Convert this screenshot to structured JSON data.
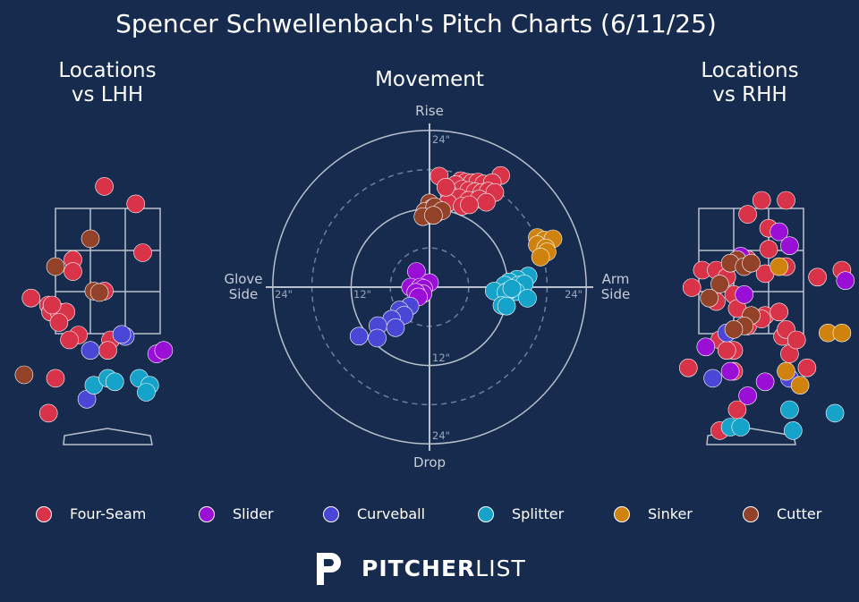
{
  "title": "Spencer Schwellenbach's Pitch Charts (6/11/25)",
  "colors": {
    "background": "#162b4d",
    "Four-Seam": "#d9334a",
    "Slider": "#9a0fd6",
    "Curveball": "#4a46d6",
    "Splitter": "#16a3c9",
    "Sinker": "#cf830e",
    "Cutter": "#93422a"
  },
  "logo": {
    "bold": "PITCHER",
    "light": "LIST"
  },
  "chart_data": [
    {
      "type": "scatter",
      "title": "Locations\nvs LHH",
      "title_line1": "Locations",
      "title_line2": "vs LHH",
      "points": [
        {
          "pitch": "Four-Seam",
          "x": -0.05,
          "y": 4.2
        },
        {
          "pitch": "Four-Seam",
          "x": 0.4,
          "y": 3.95
        },
        {
          "pitch": "Four-Seam",
          "x": 0.5,
          "y": 3.25
        },
        {
          "pitch": "Four-Seam",
          "x": -1.1,
          "y": 2.6
        },
        {
          "pitch": "Four-Seam",
          "x": -0.5,
          "y": 3.15
        },
        {
          "pitch": "Four-Seam",
          "x": -0.5,
          "y": 2.98
        },
        {
          "pitch": "Four-Seam",
          "x": -0.05,
          "y": 2.7
        },
        {
          "pitch": "Four-Seam",
          "x": -0.85,
          "y": 2.5
        },
        {
          "pitch": "Four-Seam",
          "x": -0.82,
          "y": 2.4
        },
        {
          "pitch": "Four-Seam",
          "x": -0.7,
          "y": 2.4
        },
        {
          "pitch": "Four-Seam",
          "x": -0.6,
          "y": 2.4
        },
        {
          "pitch": "Four-Seam",
          "x": -0.7,
          "y": 2.25
        },
        {
          "pitch": "Four-Seam",
          "x": -0.42,
          "y": 2.07
        },
        {
          "pitch": "Four-Seam",
          "x": -0.55,
          "y": 2.0
        },
        {
          "pitch": "Four-Seam",
          "x": 0.04,
          "y": 2.0
        },
        {
          "pitch": "Four-Seam",
          "x": 0.0,
          "y": 1.85
        },
        {
          "pitch": "Four-Seam",
          "x": -0.75,
          "y": 1.45
        },
        {
          "pitch": "Four-Seam",
          "x": -0.85,
          "y": 0.95
        },
        {
          "pitch": "Four-Seam",
          "x": -0.8,
          "y": 2.5
        },
        {
          "pitch": "Slider",
          "x": 0.7,
          "y": 1.8
        },
        {
          "pitch": "Slider",
          "x": 0.8,
          "y": 1.85
        },
        {
          "pitch": "Curveball",
          "x": 0.25,
          "y": 2.05
        },
        {
          "pitch": "Curveball",
          "x": -0.25,
          "y": 1.85
        },
        {
          "pitch": "Curveball",
          "x": -0.3,
          "y": 1.15
        },
        {
          "pitch": "Curveball",
          "x": -0.35,
          "y": 0.0
        },
        {
          "pitch": "Curveball",
          "x": 0.2,
          "y": 2.08
        },
        {
          "pitch": "Splitter",
          "x": -0.2,
          "y": 1.35
        },
        {
          "pitch": "Splitter",
          "x": 0.0,
          "y": 1.45
        },
        {
          "pitch": "Splitter",
          "x": 0.1,
          "y": 1.4
        },
        {
          "pitch": "Splitter",
          "x": 0.45,
          "y": 1.45
        },
        {
          "pitch": "Splitter",
          "x": 0.6,
          "y": 1.35
        },
        {
          "pitch": "Splitter",
          "x": 0.55,
          "y": 1.25
        },
        {
          "pitch": "Splitter",
          "x": 0.0,
          "y": 0.0
        },
        {
          "pitch": "Splitter",
          "x": -0.25,
          "y": -0.5
        },
        {
          "pitch": "Cutter",
          "x": -0.25,
          "y": 3.45
        },
        {
          "pitch": "Cutter",
          "x": -0.75,
          "y": 3.05
        },
        {
          "pitch": "Cutter",
          "x": -0.2,
          "y": 2.7
        },
        {
          "pitch": "Cutter",
          "x": -0.12,
          "y": 2.68
        },
        {
          "pitch": "Cutter",
          "x": -1.2,
          "y": 1.5
        }
      ]
    },
    {
      "type": "scatter",
      "title": "Movement",
      "axis_labels": {
        "top": "Rise",
        "bottom": "Drop",
        "left_line1": "Glove",
        "left_line2": "Side",
        "right_line1": "Arm",
        "right_line2": "Side"
      },
      "ring_labels": {
        "upper": "24\"",
        "right": "24\"",
        "left": "24\"",
        "inner_left": "12\"",
        "inner_low": "12\"",
        "lower": "24\""
      },
      "rings": [
        6,
        12,
        18,
        24
      ],
      "points": [
        {
          "pitch": "Four-Seam",
          "x": 1.5,
          "y": 17
        },
        {
          "pitch": "Four-Seam",
          "x": 4.8,
          "y": 16.3
        },
        {
          "pitch": "Four-Seam",
          "x": 5.6,
          "y": 16.1
        },
        {
          "pitch": "Four-Seam",
          "x": 6.5,
          "y": 16.0
        },
        {
          "pitch": "Four-Seam",
          "x": 7.4,
          "y": 16.1
        },
        {
          "pitch": "Four-Seam",
          "x": 8.3,
          "y": 15.8
        },
        {
          "pitch": "Four-Seam",
          "x": 10.9,
          "y": 17.1
        },
        {
          "pitch": "Four-Seam",
          "x": 9.6,
          "y": 16.0
        },
        {
          "pitch": "Four-Seam",
          "x": 4.0,
          "y": 15.7
        },
        {
          "pitch": "Four-Seam",
          "x": 5.0,
          "y": 15.0
        },
        {
          "pitch": "Four-Seam",
          "x": 6.0,
          "y": 14.8
        },
        {
          "pitch": "Four-Seam",
          "x": 7.0,
          "y": 14.6
        },
        {
          "pitch": "Four-Seam",
          "x": 8.0,
          "y": 14.5
        },
        {
          "pitch": "Four-Seam",
          "x": 9.0,
          "y": 14.7
        },
        {
          "pitch": "Four-Seam",
          "x": 10.0,
          "y": 14.5
        },
        {
          "pitch": "Four-Seam",
          "x": 3.0,
          "y": 14.3
        },
        {
          "pitch": "Four-Seam",
          "x": 4.5,
          "y": 13.7
        },
        {
          "pitch": "Four-Seam",
          "x": 6.0,
          "y": 13.3
        },
        {
          "pitch": "Four-Seam",
          "x": 7.6,
          "y": 13.5
        },
        {
          "pitch": "Four-Seam",
          "x": 8.7,
          "y": 13.0
        },
        {
          "pitch": "Four-Seam",
          "x": 2.8,
          "y": 12.9
        },
        {
          "pitch": "Four-Seam",
          "x": 5.0,
          "y": 12.4
        },
        {
          "pitch": "Four-Seam",
          "x": 6.1,
          "y": 12.6
        },
        {
          "pitch": "Four-Seam",
          "x": 2.5,
          "y": 15.3
        },
        {
          "pitch": "Cutter",
          "x": 0.0,
          "y": 12.9
        },
        {
          "pitch": "Cutter",
          "x": 0.4,
          "y": 12.1
        },
        {
          "pitch": "Cutter",
          "x": 1.0,
          "y": 11.3
        },
        {
          "pitch": "Cutter",
          "x": -0.7,
          "y": 11.6
        },
        {
          "pitch": "Cutter",
          "x": 0.8,
          "y": 12.3
        },
        {
          "pitch": "Cutter",
          "x": 1.9,
          "y": 11.7
        },
        {
          "pitch": "Cutter",
          "x": -1.0,
          "y": 10.8
        },
        {
          "pitch": "Cutter",
          "x": 0.6,
          "y": 11.0
        },
        {
          "pitch": "Sinker",
          "x": 16.5,
          "y": 7.6
        },
        {
          "pitch": "Sinker",
          "x": 17.6,
          "y": 7.2
        },
        {
          "pitch": "Sinker",
          "x": 18.9,
          "y": 7.4
        },
        {
          "pitch": "Sinker",
          "x": 16.5,
          "y": 6.5
        },
        {
          "pitch": "Sinker",
          "x": 17.8,
          "y": 6.0
        },
        {
          "pitch": "Sinker",
          "x": 18.0,
          "y": 5.4
        },
        {
          "pitch": "Sinker",
          "x": 17.0,
          "y": 4.6
        },
        {
          "pitch": "Splitter",
          "x": 15.1,
          "y": 1.7
        },
        {
          "pitch": "Splitter",
          "x": 13.4,
          "y": 1.2
        },
        {
          "pitch": "Splitter",
          "x": 12.2,
          "y": 0.8
        },
        {
          "pitch": "Splitter",
          "x": 13.6,
          "y": 0.3
        },
        {
          "pitch": "Splitter",
          "x": 14.5,
          "y": 0.5
        },
        {
          "pitch": "Splitter",
          "x": 11.5,
          "y": 0.3
        },
        {
          "pitch": "Splitter",
          "x": 13.2,
          "y": -0.7
        },
        {
          "pitch": "Splitter",
          "x": 12.0,
          "y": -0.6
        },
        {
          "pitch": "Splitter",
          "x": 9.9,
          "y": -0.6
        },
        {
          "pitch": "Splitter",
          "x": 11.7,
          "y": -0.8
        },
        {
          "pitch": "Splitter",
          "x": 12.6,
          "y": -0.2
        },
        {
          "pitch": "Splitter",
          "x": 15.0,
          "y": -1.7
        },
        {
          "pitch": "Splitter",
          "x": 11.1,
          "y": -2.8
        },
        {
          "pitch": "Splitter",
          "x": 11.8,
          "y": -2.9
        },
        {
          "pitch": "Slider",
          "x": -2.0,
          "y": 2.4
        },
        {
          "pitch": "Slider",
          "x": 0.0,
          "y": 0.7
        },
        {
          "pitch": "Slider",
          "x": -2.9,
          "y": 0.0
        },
        {
          "pitch": "Slider",
          "x": -1.4,
          "y": 0.0
        },
        {
          "pitch": "Slider",
          "x": -0.9,
          "y": -0.2
        },
        {
          "pitch": "Slider",
          "x": -1.0,
          "y": -1.0
        },
        {
          "pitch": "Slider",
          "x": -2.1,
          "y": -0.8
        },
        {
          "pitch": "Slider",
          "x": -1.7,
          "y": -1.5
        },
        {
          "pitch": "Curveball",
          "x": -3.0,
          "y": -2.9
        },
        {
          "pitch": "Curveball",
          "x": -4.6,
          "y": -3.5
        },
        {
          "pitch": "Curveball",
          "x": -3.9,
          "y": -4.3
        },
        {
          "pitch": "Curveball",
          "x": -5.8,
          "y": -4.9
        },
        {
          "pitch": "Curveball",
          "x": -7.9,
          "y": -5.9
        },
        {
          "pitch": "Curveball",
          "x": -5.2,
          "y": -6.2
        },
        {
          "pitch": "Curveball",
          "x": -10.8,
          "y": -7.5
        },
        {
          "pitch": "Curveball",
          "x": -8.0,
          "y": -7.8
        }
      ]
    },
    {
      "type": "scatter",
      "title": "Locations\nvs RHH",
      "title_line1": "Locations",
      "title_line2": "vs RHH",
      "points": [
        {
          "pitch": "Four-Seam",
          "x": 0.15,
          "y": 4.0
        },
        {
          "pitch": "Four-Seam",
          "x": 0.5,
          "y": 4.0
        },
        {
          "pitch": "Four-Seam",
          "x": -0.05,
          "y": 3.8
        },
        {
          "pitch": "Four-Seam",
          "x": 0.25,
          "y": 3.6
        },
        {
          "pitch": "Four-Seam",
          "x": 1.7,
          "y": 3.5
        },
        {
          "pitch": "Four-Seam",
          "x": 0.25,
          "y": 3.3
        },
        {
          "pitch": "Four-Seam",
          "x": -0.05,
          "y": 3.15
        },
        {
          "pitch": "Four-Seam",
          "x": 0.5,
          "y": 3.05
        },
        {
          "pitch": "Four-Seam",
          "x": -0.7,
          "y": 3.0
        },
        {
          "pitch": "Four-Seam",
          "x": -0.5,
          "y": 3.0
        },
        {
          "pitch": "Four-Seam",
          "x": -0.35,
          "y": 2.9
        },
        {
          "pitch": "Four-Seam",
          "x": 0.2,
          "y": 2.95
        },
        {
          "pitch": "Four-Seam",
          "x": 0.95,
          "y": 2.9
        },
        {
          "pitch": "Four-Seam",
          "x": -0.85,
          "y": 2.75
        },
        {
          "pitch": "Four-Seam",
          "x": -0.25,
          "y": 2.65
        },
        {
          "pitch": "Four-Seam",
          "x": -0.5,
          "y": 2.55
        },
        {
          "pitch": "Four-Seam",
          "x": -0.2,
          "y": 2.45
        },
        {
          "pitch": "Four-Seam",
          "x": 0.2,
          "y": 2.35
        },
        {
          "pitch": "Four-Seam",
          "x": -0.05,
          "y": 2.2
        },
        {
          "pitch": "Four-Seam",
          "x": 0.45,
          "y": 2.05
        },
        {
          "pitch": "Four-Seam",
          "x": 0.5,
          "y": 2.15
        },
        {
          "pitch": "Four-Seam",
          "x": -0.25,
          "y": 1.85
        },
        {
          "pitch": "Four-Seam",
          "x": 0.55,
          "y": 1.8
        },
        {
          "pitch": "Four-Seam",
          "x": 0.65,
          "y": 2.0
        },
        {
          "pitch": "Four-Seam",
          "x": -0.45,
          "y": 2.0
        },
        {
          "pitch": "Four-Seam",
          "x": -0.35,
          "y": 1.85
        },
        {
          "pitch": "Four-Seam",
          "x": -0.25,
          "y": 1.55
        },
        {
          "pitch": "Four-Seam",
          "x": 0.8,
          "y": 1.6
        },
        {
          "pitch": "Four-Seam",
          "x": -0.9,
          "y": 1.6
        },
        {
          "pitch": "Four-Seam",
          "x": -0.2,
          "y": 1.0
        },
        {
          "pitch": "Four-Seam",
          "x": -0.45,
          "y": 0.7
        },
        {
          "pitch": "Four-Seam",
          "x": 1.3,
          "y": 3.0
        },
        {
          "pitch": "Four-Seam",
          "x": 0.15,
          "y": 2.3
        },
        {
          "pitch": "Four-Seam",
          "x": 0.4,
          "y": 2.4
        },
        {
          "pitch": "Slider",
          "x": 0.4,
          "y": 3.55
        },
        {
          "pitch": "Slider",
          "x": -0.15,
          "y": 3.2
        },
        {
          "pitch": "Slider",
          "x": 0.55,
          "y": 3.35
        },
        {
          "pitch": "Slider",
          "x": 1.35,
          "y": 2.85
        },
        {
          "pitch": "Slider",
          "x": -0.1,
          "y": 2.65
        },
        {
          "pitch": "Slider",
          "x": -0.65,
          "y": 1.9
        },
        {
          "pitch": "Slider",
          "x": -0.3,
          "y": 1.55
        },
        {
          "pitch": "Slider",
          "x": 0.2,
          "y": 1.4
        },
        {
          "pitch": "Slider",
          "x": -0.05,
          "y": 1.2
        },
        {
          "pitch": "Curveball",
          "x": -0.35,
          "y": 2.1
        },
        {
          "pitch": "Curveball",
          "x": -0.55,
          "y": 1.45
        },
        {
          "pitch": "Curveball",
          "x": 0.55,
          "y": 1.45
        },
        {
          "pitch": "Sinker",
          "x": 0.4,
          "y": 3.05
        },
        {
          "pitch": "Sinker",
          "x": 1.1,
          "y": 2.1
        },
        {
          "pitch": "Sinker",
          "x": 1.3,
          "y": 2.1
        },
        {
          "pitch": "Sinker",
          "x": 0.5,
          "y": 1.55
        },
        {
          "pitch": "Sinker",
          "x": 0.7,
          "y": 1.35
        },
        {
          "pitch": "Splitter",
          "x": 0.55,
          "y": 1.0
        },
        {
          "pitch": "Splitter",
          "x": 1.2,
          "y": 0.95
        },
        {
          "pitch": "Splitter",
          "x": 1.6,
          "y": 1.3
        },
        {
          "pitch": "Splitter",
          "x": -0.3,
          "y": 0.75
        },
        {
          "pitch": "Splitter",
          "x": -0.15,
          "y": 0.75
        },
        {
          "pitch": "Splitter",
          "x": 0.6,
          "y": 0.7
        },
        {
          "pitch": "Cutter",
          "x": -0.2,
          "y": 3.15
        },
        {
          "pitch": "Cutter",
          "x": -0.3,
          "y": 3.1
        },
        {
          "pitch": "Cutter",
          "x": -0.1,
          "y": 3.05
        },
        {
          "pitch": "Cutter",
          "x": 0.0,
          "y": 3.1
        },
        {
          "pitch": "Cutter",
          "x": -0.45,
          "y": 2.8
        },
        {
          "pitch": "Cutter",
          "x": 0.0,
          "y": 2.35
        },
        {
          "pitch": "Cutter",
          "x": -0.1,
          "y": 2.2
        },
        {
          "pitch": "Cutter",
          "x": -0.25,
          "y": 2.15
        },
        {
          "pitch": "Cutter",
          "x": -0.6,
          "y": 2.6
        }
      ]
    }
  ],
  "legend": [
    {
      "label": "Four-Seam",
      "pitch": "Four-Seam"
    },
    {
      "label": "Slider",
      "pitch": "Slider"
    },
    {
      "label": "Curveball",
      "pitch": "Curveball"
    },
    {
      "label": "Splitter",
      "pitch": "Splitter"
    },
    {
      "label": "Sinker",
      "pitch": "Sinker"
    },
    {
      "label": "Cutter",
      "pitch": "Cutter"
    }
  ]
}
